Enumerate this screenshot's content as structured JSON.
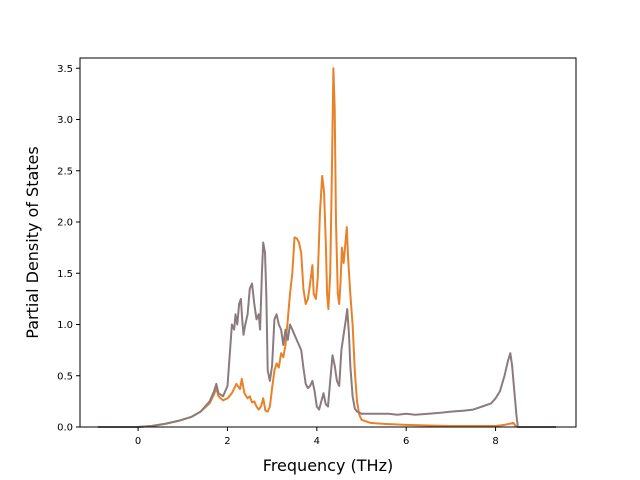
{
  "chart_data": {
    "type": "line",
    "title": "",
    "xlabel": "Frequency (THz)",
    "ylabel": "Partial Density of States",
    "xlim": [
      -1.3,
      9.8
    ],
    "ylim": [
      0,
      3.6
    ],
    "xticks": [
      0,
      2,
      4,
      6,
      8
    ],
    "xtick_labels": [
      "0",
      "2",
      "4",
      "6",
      "8"
    ],
    "yticks": [
      0,
      0.5,
      1,
      1.5,
      2,
      2.5,
      3,
      3.5
    ],
    "ytick_labels": [
      "0.0",
      "0.5",
      "1.0",
      "1.5",
      "2.0",
      "2.5",
      "3.0",
      "3.5"
    ],
    "grid": false,
    "legend": false,
    "series": [
      {
        "color": "#e8822a",
        "points": [
          [
            -0.9,
            0
          ],
          [
            0,
            0
          ],
          [
            0.3,
            0.01
          ],
          [
            0.6,
            0.03
          ],
          [
            0.9,
            0.06
          ],
          [
            1.2,
            0.1
          ],
          [
            1.4,
            0.15
          ],
          [
            1.6,
            0.23
          ],
          [
            1.7,
            0.32
          ],
          [
            1.75,
            0.38
          ],
          [
            1.8,
            0.3
          ],
          [
            1.9,
            0.26
          ],
          [
            2.0,
            0.28
          ],
          [
            2.1,
            0.33
          ],
          [
            2.2,
            0.42
          ],
          [
            2.28,
            0.37
          ],
          [
            2.32,
            0.47
          ],
          [
            2.38,
            0.33
          ],
          [
            2.45,
            0.28
          ],
          [
            2.5,
            0.3
          ],
          [
            2.55,
            0.24
          ],
          [
            2.6,
            0.25
          ],
          [
            2.65,
            0.2
          ],
          [
            2.7,
            0.17
          ],
          [
            2.75,
            0.2
          ],
          [
            2.8,
            0.28
          ],
          [
            2.85,
            0.16
          ],
          [
            2.9,
            0.15
          ],
          [
            2.95,
            0.2
          ],
          [
            3.0,
            0.38
          ],
          [
            3.05,
            0.55
          ],
          [
            3.1,
            0.62
          ],
          [
            3.15,
            0.58
          ],
          [
            3.2,
            0.72
          ],
          [
            3.25,
            0.68
          ],
          [
            3.3,
            0.8
          ],
          [
            3.35,
            1.05
          ],
          [
            3.4,
            1.3
          ],
          [
            3.45,
            1.5
          ],
          [
            3.5,
            1.85
          ],
          [
            3.55,
            1.84
          ],
          [
            3.6,
            1.8
          ],
          [
            3.65,
            1.7
          ],
          [
            3.7,
            1.35
          ],
          [
            3.75,
            1.2
          ],
          [
            3.8,
            1.25
          ],
          [
            3.85,
            1.4
          ],
          [
            3.9,
            1.58
          ],
          [
            3.93,
            1.3
          ],
          [
            3.98,
            1.25
          ],
          [
            4.02,
            1.45
          ],
          [
            4.07,
            2.1
          ],
          [
            4.12,
            2.45
          ],
          [
            4.16,
            2.3
          ],
          [
            4.2,
            1.8
          ],
          [
            4.23,
            1.3
          ],
          [
            4.26,
            1.15
          ],
          [
            4.3,
            1.5
          ],
          [
            4.33,
            2.3
          ],
          [
            4.37,
            3.5
          ],
          [
            4.4,
            3.1
          ],
          [
            4.43,
            2.0
          ],
          [
            4.47,
            1.3
          ],
          [
            4.5,
            1.2
          ],
          [
            4.53,
            1.4
          ],
          [
            4.56,
            1.75
          ],
          [
            4.6,
            1.6
          ],
          [
            4.63,
            1.75
          ],
          [
            4.67,
            1.95
          ],
          [
            4.7,
            1.65
          ],
          [
            4.75,
            1.3
          ],
          [
            4.8,
            1.0
          ],
          [
            4.85,
            0.55
          ],
          [
            4.9,
            0.25
          ],
          [
            4.95,
            0.12
          ],
          [
            5.0,
            0.07
          ],
          [
            5.2,
            0.04
          ],
          [
            5.5,
            0.03
          ],
          [
            6.0,
            0.02
          ],
          [
            6.5,
            0.015
          ],
          [
            7.0,
            0.01
          ],
          [
            7.5,
            0.01
          ],
          [
            8.0,
            0.01
          ],
          [
            8.2,
            0.02
          ],
          [
            8.3,
            0.03
          ],
          [
            8.4,
            0.04
          ],
          [
            8.45,
            0.01
          ],
          [
            8.5,
            0
          ],
          [
            9.35,
            0
          ]
        ]
      },
      {
        "color": "#8c7b7e",
        "points": [
          [
            -0.9,
            0
          ],
          [
            0,
            0
          ],
          [
            0.3,
            0.01
          ],
          [
            0.6,
            0.03
          ],
          [
            0.9,
            0.06
          ],
          [
            1.2,
            0.1
          ],
          [
            1.4,
            0.15
          ],
          [
            1.6,
            0.25
          ],
          [
            1.7,
            0.35
          ],
          [
            1.75,
            0.42
          ],
          [
            1.8,
            0.33
          ],
          [
            1.9,
            0.3
          ],
          [
            2.0,
            0.4
          ],
          [
            2.05,
            0.7
          ],
          [
            2.1,
            1.0
          ],
          [
            2.15,
            0.95
          ],
          [
            2.18,
            1.1
          ],
          [
            2.22,
            1.0
          ],
          [
            2.26,
            1.2
          ],
          [
            2.3,
            1.25
          ],
          [
            2.33,
            1.05
          ],
          [
            2.36,
            0.9
          ],
          [
            2.4,
            1.0
          ],
          [
            2.45,
            1.1
          ],
          [
            2.5,
            1.35
          ],
          [
            2.55,
            1.4
          ],
          [
            2.6,
            1.2
          ],
          [
            2.65,
            1.05
          ],
          [
            2.7,
            1.1
          ],
          [
            2.73,
            0.95
          ],
          [
            2.77,
            1.5
          ],
          [
            2.8,
            1.8
          ],
          [
            2.84,
            1.7
          ],
          [
            2.87,
            1.3
          ],
          [
            2.9,
            0.55
          ],
          [
            2.95,
            0.45
          ],
          [
            3.0,
            0.6
          ],
          [
            3.05,
            1.05
          ],
          [
            3.1,
            1.1
          ],
          [
            3.15,
            1.0
          ],
          [
            3.2,
            0.95
          ],
          [
            3.25,
            0.8
          ],
          [
            3.3,
            0.95
          ],
          [
            3.35,
            0.85
          ],
          [
            3.4,
            1.0
          ],
          [
            3.45,
            0.95
          ],
          [
            3.5,
            0.9
          ],
          [
            3.55,
            0.85
          ],
          [
            3.6,
            0.8
          ],
          [
            3.65,
            0.75
          ],
          [
            3.7,
            0.58
          ],
          [
            3.75,
            0.42
          ],
          [
            3.8,
            0.38
          ],
          [
            3.85,
            0.4
          ],
          [
            3.9,
            0.45
          ],
          [
            3.95,
            0.35
          ],
          [
            4.0,
            0.2
          ],
          [
            4.05,
            0.17
          ],
          [
            4.1,
            0.25
          ],
          [
            4.15,
            0.33
          ],
          [
            4.2,
            0.22
          ],
          [
            4.25,
            0.2
          ],
          [
            4.3,
            0.45
          ],
          [
            4.35,
            0.7
          ],
          [
            4.4,
            0.6
          ],
          [
            4.45,
            0.45
          ],
          [
            4.5,
            0.4
          ],
          [
            4.55,
            0.75
          ],
          [
            4.6,
            0.9
          ],
          [
            4.65,
            1.05
          ],
          [
            4.68,
            1.15
          ],
          [
            4.72,
            0.9
          ],
          [
            4.75,
            0.6
          ],
          [
            4.8,
            0.3
          ],
          [
            4.85,
            0.18
          ],
          [
            4.9,
            0.15
          ],
          [
            5.0,
            0.13
          ],
          [
            5.3,
            0.13
          ],
          [
            5.6,
            0.13
          ],
          [
            5.8,
            0.12
          ],
          [
            6.0,
            0.13
          ],
          [
            6.2,
            0.12
          ],
          [
            6.5,
            0.13
          ],
          [
            6.8,
            0.14
          ],
          [
            7.0,
            0.15
          ],
          [
            7.3,
            0.16
          ],
          [
            7.5,
            0.17
          ],
          [
            7.7,
            0.2
          ],
          [
            7.9,
            0.23
          ],
          [
            8.0,
            0.28
          ],
          [
            8.1,
            0.35
          ],
          [
            8.2,
            0.5
          ],
          [
            8.28,
            0.65
          ],
          [
            8.33,
            0.72
          ],
          [
            8.37,
            0.6
          ],
          [
            8.42,
            0.35
          ],
          [
            8.47,
            0.1
          ],
          [
            8.5,
            0
          ],
          [
            9.35,
            0
          ]
        ]
      }
    ]
  }
}
